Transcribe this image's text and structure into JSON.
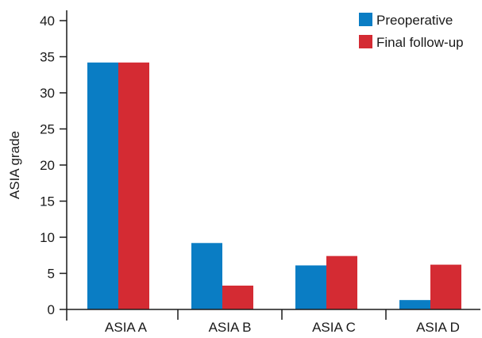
{
  "chart_data": {
    "type": "bar",
    "title": "",
    "xlabel": "",
    "ylabel": "ASIA grade",
    "categories": [
      "ASIA A",
      "ASIA B",
      "ASIA C",
      "ASIA D"
    ],
    "series": [
      {
        "name": "Preoperative",
        "values": [
          34.2,
          9.2,
          6.1,
          1.3
        ],
        "color": "#0a7dc4"
      },
      {
        "name": "Final follow-up",
        "values": [
          34.2,
          3.3,
          7.4,
          6.2
        ],
        "color": "#d42b33"
      }
    ],
    "ylim": [
      0,
      40
    ],
    "yticks": [
      "0",
      "5",
      "10",
      "15",
      "20",
      "25",
      "30",
      "35",
      "40"
    ],
    "grid": false,
    "legend_position": "top-right"
  }
}
